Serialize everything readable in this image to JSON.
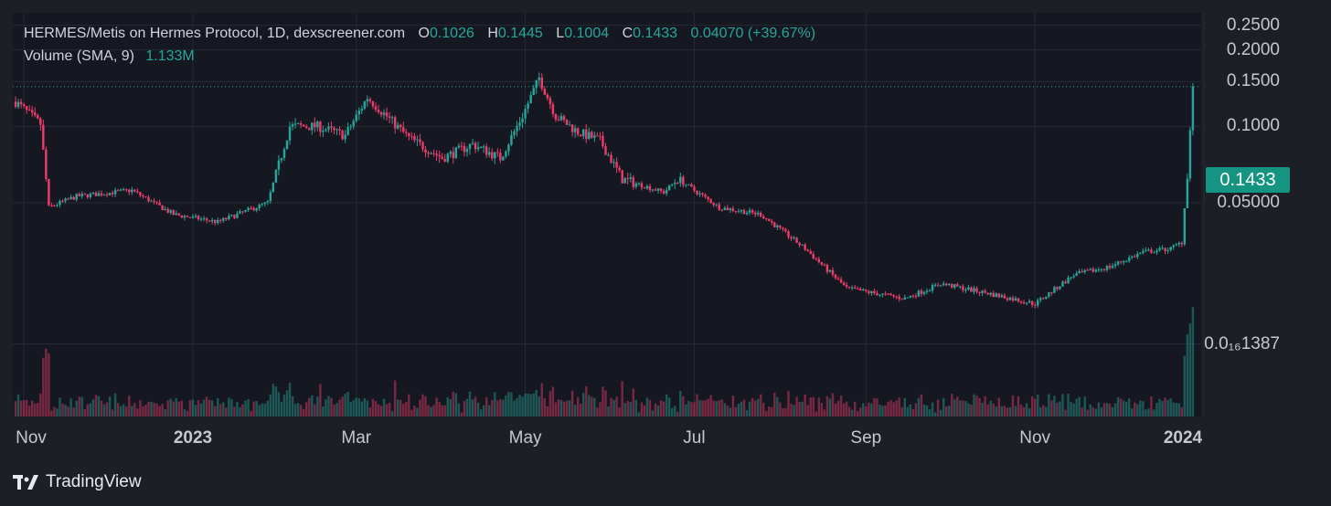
{
  "header": {
    "symbol": "HERMES/Metis on Hermes Protocol, 1D, dexscreener.com",
    "open_label": "O",
    "open_value": "0.1026",
    "high_label": "H",
    "high_value": "0.1445",
    "low_label": "L",
    "low_value": "0.1004",
    "close_label": "C",
    "close_value": "0.1433",
    "change": "0.04070 (+39.67%)",
    "volume_label": "Volume (SMA, 9)",
    "volume_value": "1.133M"
  },
  "last_price_tag": "0.1433",
  "brand": "TradingView",
  "colors": {
    "up": "#26a69a",
    "down": "#ef3b6b",
    "background": "#161821",
    "price_tag": "#159482"
  },
  "chart_data": {
    "type": "candlestick",
    "x_axis": {
      "range": [
        "2022-10-28",
        "2023-12-31"
      ],
      "ticks": [
        {
          "label": "Nov",
          "date": "2022-11-01",
          "bold": false
        },
        {
          "label": "2023",
          "date": "2023-01-01",
          "bold": true
        },
        {
          "label": "Mar",
          "date": "2023-03-01",
          "bold": false
        },
        {
          "label": "May",
          "date": "2023-05-01",
          "bold": false
        },
        {
          "label": "Jul",
          "date": "2023-07-01",
          "bold": false
        },
        {
          "label": "Sep",
          "date": "2023-09-01",
          "bold": false
        },
        {
          "label": "Nov",
          "date": "2023-11-01",
          "bold": false
        },
        {
          "label": "2024",
          "date": "2024-01-01",
          "bold": true
        }
      ]
    },
    "y_axis": {
      "scale": "log",
      "range": [
        0.0072,
        0.28
      ],
      "ticks": [
        {
          "label": "0.2500",
          "value": 0.25
        },
        {
          "label": "0.2000",
          "value": 0.2
        },
        {
          "label": "0.1500",
          "value": 0.15
        },
        {
          "label": "0.1000",
          "value": 0.1
        },
        {
          "label": "0.05000",
          "value": 0.05
        },
        {
          "label": "0.0₁₆1387",
          "value": 0.0139
        }
      ]
    },
    "last_price": 0.1433,
    "price_path": [
      {
        "date": "2022-10-29",
        "price": 0.125
      },
      {
        "date": "2022-11-07",
        "price": 0.102
      },
      {
        "date": "2022-11-10",
        "price": 0.048
      },
      {
        "date": "2022-11-20",
        "price": 0.053
      },
      {
        "date": "2022-12-10",
        "price": 0.056
      },
      {
        "date": "2022-12-25",
        "price": 0.045
      },
      {
        "date": "2023-01-10",
        "price": 0.042
      },
      {
        "date": "2023-01-28",
        "price": 0.05
      },
      {
        "date": "2023-02-05",
        "price": 0.1
      },
      {
        "date": "2023-02-15",
        "price": 0.1
      },
      {
        "date": "2023-02-25",
        "price": 0.092
      },
      {
        "date": "2023-03-05",
        "price": 0.13
      },
      {
        "date": "2023-03-20",
        "price": 0.09
      },
      {
        "date": "2023-04-01",
        "price": 0.075
      },
      {
        "date": "2023-04-12",
        "price": 0.085
      },
      {
        "date": "2023-04-22",
        "price": 0.075
      },
      {
        "date": "2023-04-30",
        "price": 0.11
      },
      {
        "date": "2023-05-06",
        "price": 0.155
      },
      {
        "date": "2023-05-12",
        "price": 0.11
      },
      {
        "date": "2023-05-20",
        "price": 0.095
      },
      {
        "date": "2023-05-28",
        "price": 0.088
      },
      {
        "date": "2023-06-05",
        "price": 0.062
      },
      {
        "date": "2023-06-20",
        "price": 0.055
      },
      {
        "date": "2023-06-25",
        "price": 0.062
      },
      {
        "date": "2023-07-10",
        "price": 0.048
      },
      {
        "date": "2023-07-25",
        "price": 0.045
      },
      {
        "date": "2023-08-10",
        "price": 0.033
      },
      {
        "date": "2023-08-25",
        "price": 0.023
      },
      {
        "date": "2023-09-15",
        "price": 0.021
      },
      {
        "date": "2023-09-28",
        "price": 0.024
      },
      {
        "date": "2023-10-15",
        "price": 0.022
      },
      {
        "date": "2023-11-01",
        "price": 0.02
      },
      {
        "date": "2023-11-15",
        "price": 0.026
      },
      {
        "date": "2023-11-28",
        "price": 0.028
      },
      {
        "date": "2023-12-10",
        "price": 0.032
      },
      {
        "date": "2023-12-20",
        "price": 0.033
      },
      {
        "date": "2023-12-24",
        "price": 0.035
      },
      {
        "date": "2023-12-26",
        "price": 0.065
      },
      {
        "date": "2023-12-27",
        "price": 0.1
      },
      {
        "date": "2023-12-28",
        "price": 0.1433
      }
    ]
  }
}
